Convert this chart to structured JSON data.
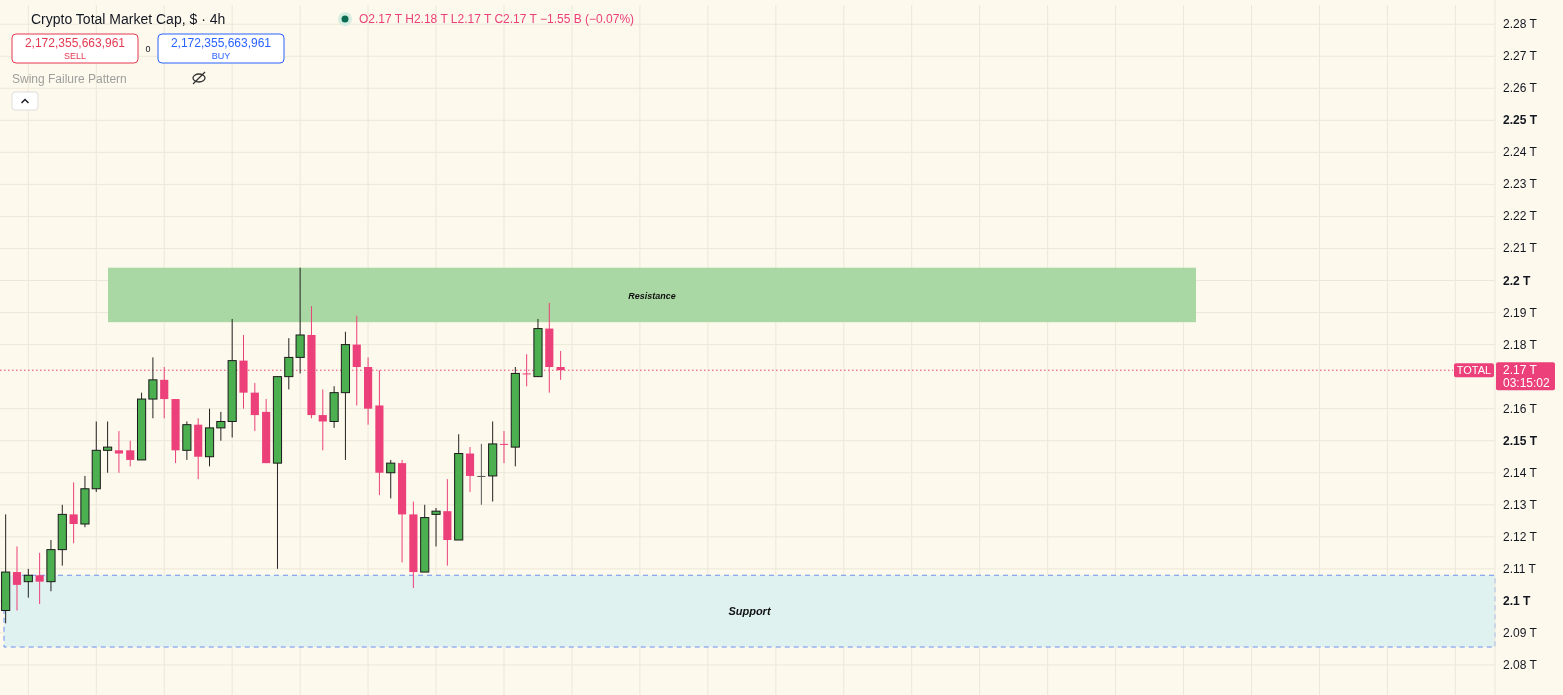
{
  "chart_data": {
    "type": "candlestick",
    "title": "Crypto Total Market Cap, $ · 4h",
    "subtitle": "O2.17 T H2.18 T L2.17 T C2.17 T −1.55 B (−0.07%)",
    "categories": [
      null,
      null,
      null,
      null,
      null,
      null,
      null,
      null,
      null,
      null,
      null,
      null,
      null,
      null,
      null,
      null,
      null,
      null,
      null,
      null,
      null,
      null,
      null,
      null,
      null,
      null,
      null,
      null,
      null,
      null,
      null,
      null,
      null,
      null,
      null,
      null,
      null,
      null,
      null,
      null,
      null,
      null,
      null,
      null,
      null,
      null,
      null,
      null,
      null,
      null,
      null,
      null,
      null,
      null,
      null,
      null,
      null,
      null,
      null,
      null,
      null,
      null,
      null,
      null,
      null,
      null,
      null,
      null,
      null,
      null,
      null,
      null,
      null,
      null,
      null,
      null,
      null,
      null,
      null,
      null,
      null,
      null,
      null,
      null,
      null,
      null,
      null,
      null,
      null,
      null,
      null,
      null,
      null,
      null,
      null,
      null,
      null,
      null,
      null,
      null,
      null,
      null,
      null,
      null,
      null,
      null,
      null,
      null,
      null,
      null,
      null,
      null,
      null,
      null,
      null,
      null,
      null,
      null,
      null,
      null,
      null,
      null,
      null,
      null,
      null,
      null,
      null,
      null,
      null,
      null,
      null,
      null
    ],
    "ohlc": [
      [
        2.097,
        2.127,
        2.093,
        2.109
      ],
      [
        2.109,
        2.117,
        2.097,
        2.105
      ],
      [
        2.106,
        2.11,
        2.101,
        2.108
      ],
      [
        2.108,
        2.115,
        2.099,
        2.106
      ],
      [
        2.106,
        2.119,
        2.103,
        2.116
      ],
      [
        2.116,
        2.13,
        2.111,
        2.127
      ],
      [
        2.127,
        2.137,
        2.118,
        2.124
      ],
      [
        2.124,
        2.139,
        2.123,
        2.135
      ],
      [
        2.135,
        2.156,
        2.134,
        2.147
      ],
      [
        2.147,
        2.156,
        2.14,
        2.148
      ],
      [
        2.147,
        2.153,
        2.14,
        2.146
      ],
      [
        2.147,
        2.15,
        2.142,
        2.144
      ],
      [
        2.144,
        2.165,
        2.144,
        2.163
      ],
      [
        2.163,
        2.176,
        2.157,
        2.169
      ],
      [
        2.169,
        2.173,
        2.157,
        2.163
      ],
      [
        2.163,
        2.163,
        2.143,
        2.147
      ],
      [
        2.147,
        2.156,
        2.144,
        2.155
      ],
      [
        2.155,
        2.157,
        2.138,
        2.145
      ],
      [
        2.145,
        2.16,
        2.142,
        2.154
      ],
      [
        2.154,
        2.159,
        2.15,
        2.156
      ],
      [
        2.156,
        2.188,
        2.151,
        2.175
      ],
      [
        2.175,
        2.183,
        2.16,
        2.165
      ],
      [
        2.165,
        2.168,
        2.153,
        2.158
      ],
      [
        2.159,
        2.163,
        2.143,
        2.143
      ],
      [
        2.143,
        2.17,
        2.11,
        2.17
      ],
      [
        2.17,
        2.182,
        2.166,
        2.176
      ],
      [
        2.176,
        2.204,
        2.171,
        2.183
      ],
      [
        2.183,
        2.192,
        2.157,
        2.158
      ],
      [
        2.158,
        2.166,
        2.147,
        2.156
      ],
      [
        2.156,
        2.167,
        2.154,
        2.165
      ],
      [
        2.165,
        2.184,
        2.144,
        2.18
      ],
      [
        2.18,
        2.189,
        2.161,
        2.173
      ],
      [
        2.173,
        2.176,
        2.155,
        2.16
      ],
      [
        2.161,
        2.172,
        2.133,
        2.14
      ],
      [
        2.14,
        2.144,
        2.132,
        2.143
      ],
      [
        2.143,
        2.144,
        2.112,
        2.127
      ],
      [
        2.127,
        2.131,
        2.104,
        2.109
      ],
      [
        2.109,
        2.13,
        2.109,
        2.126
      ],
      [
        2.127,
        2.129,
        2.117,
        2.128
      ],
      [
        2.128,
        2.138,
        2.111,
        2.119
      ],
      [
        2.119,
        2.152,
        2.119,
        2.146
      ],
      [
        2.146,
        2.148,
        2.134,
        2.139
      ],
      [
        2.139,
        2.149,
        2.13,
        2.139
      ],
      [
        2.139,
        2.156,
        2.131,
        2.149
      ],
      [
        2.149,
        2.153,
        2.143,
        2.149
      ],
      [
        2.148,
        2.173,
        2.142,
        2.171
      ],
      [
        2.171,
        2.177,
        2.167,
        2.171
      ],
      [
        2.17,
        2.188,
        2.17,
        2.185
      ],
      [
        2.185,
        2.193,
        2.165,
        2.173
      ],
      [
        2.173,
        2.178,
        2.169,
        2.172
      ],
      null,
      null,
      null,
      null,
      null,
      null,
      null,
      null,
      null,
      null,
      null,
      null,
      null,
      null,
      null,
      null,
      null,
      null,
      null,
      null,
      null,
      null,
      null,
      null,
      null,
      null,
      null,
      null,
      null,
      null,
      null,
      null,
      null,
      null,
      null,
      null,
      null,
      null,
      null,
      null,
      null,
      null,
      null,
      null,
      null,
      null,
      null,
      null,
      null,
      null,
      null,
      null,
      null,
      null,
      null,
      null,
      null,
      null,
      null,
      null,
      null,
      null,
      null,
      null,
      null,
      null,
      null,
      null,
      null,
      null,
      null,
      null,
      null,
      null,
      null,
      null,
      null,
      null,
      null,
      null,
      null,
      null
    ],
    "colors": [
      "#4caf50",
      "#ec407a",
      "#4caf50",
      "#ec407a",
      "#4caf50",
      "#4caf50",
      "#ec407a",
      "#4caf50",
      "#4caf50",
      "#4caf50",
      "#ec407a",
      "#ec407a",
      "#4caf50",
      "#4caf50",
      "#ec407a",
      "#ec407a",
      "#4caf50",
      "#ec407a",
      "#4caf50",
      "#4caf50",
      "#4caf50",
      "#ec407a",
      "#ec407a",
      "#ec407a",
      "#4caf50",
      "#4caf50",
      "#4caf50",
      "#ec407a",
      "#ec407a",
      "#4caf50",
      "#4caf50",
      "#ec407a",
      "#ec407a",
      "#ec407a",
      "#4caf50",
      "#ec407a",
      "#ec407a",
      "#4caf50",
      "#4caf50",
      "#ec407a",
      "#4caf50",
      "#ec407a",
      "#555555",
      "#4caf50",
      "#ec407a",
      "#4caf50",
      "#ec407a",
      "#4caf50",
      "#ec407a",
      "#ec407a",
      null,
      null,
      null,
      null,
      null,
      null,
      null,
      null,
      null,
      null,
      null,
      null,
      null,
      null,
      null,
      null,
      null,
      null,
      null,
      null,
      null,
      null,
      null,
      null,
      null,
      null,
      null,
      null,
      null,
      null,
      null,
      null,
      null,
      null,
      null,
      null,
      null,
      null,
      null,
      null,
      null,
      null,
      null,
      null,
      null,
      null,
      null,
      null,
      null,
      null,
      null,
      null,
      null,
      null,
      null,
      null,
      null,
      null,
      null,
      null,
      null,
      null,
      null,
      null,
      null,
      null,
      null,
      null,
      null,
      null,
      null,
      null,
      null,
      null,
      null,
      null,
      null,
      null,
      null,
      null,
      null,
      null
    ],
    "ylim": [
      2.07,
      2.286
    ],
    "yticks": [
      {
        "value": 2.08,
        "label": "2.08 T"
      },
      {
        "value": 2.09,
        "label": "2.09 T"
      },
      {
        "value": 2.1,
        "label": "2.1 T"
      },
      {
        "value": 2.11,
        "label": "2.11 T"
      },
      {
        "value": 2.12,
        "label": "2.12 T"
      },
      {
        "value": 2.13,
        "label": "2.13 T"
      },
      {
        "value": 2.14,
        "label": "2.14 T"
      },
      {
        "value": 2.15,
        "label": "2.15 T"
      },
      {
        "value": 2.16,
        "label": "2.16 T"
      },
      {
        "value": 2.18,
        "label": "2.18 T"
      },
      {
        "value": 2.19,
        "label": "2.19 T"
      },
      {
        "value": 2.2,
        "label": "2.2 T"
      },
      {
        "value": 2.21,
        "label": "2.21 T"
      },
      {
        "value": 2.22,
        "label": "2.22 T"
      },
      {
        "value": 2.23,
        "label": "2.23 T"
      },
      {
        "value": 2.24,
        "label": "2.24 T"
      },
      {
        "value": 2.25,
        "label": "2.25 T"
      },
      {
        "value": 2.26,
        "label": "2.26 T"
      },
      {
        "value": 2.27,
        "label": "2.27 T"
      },
      {
        "value": 2.28,
        "label": "2.28 T"
      }
    ],
    "grid": true,
    "ref_lines": [
      {
        "axis": "y",
        "value": 2.172,
        "label": "TOTAL",
        "color": "#ec407a",
        "line_style": "dotted"
      }
    ],
    "bands": [
      {
        "axis": "y",
        "from": 2.187,
        "to": 2.204,
        "label": "Resistance",
        "color": "#a5d6a0"
      },
      {
        "axis": "y",
        "from": 2.0856,
        "to": 2.108,
        "label": "Support",
        "color": "#dff2ef"
      }
    ],
    "annotations": [
      "2,172,355,663,961",
      "SELL",
      "0",
      "2,172,355,663,961",
      "BUY",
      "Swing Failure Pattern",
      "2.17 T",
      "03:15:02"
    ]
  }
}
